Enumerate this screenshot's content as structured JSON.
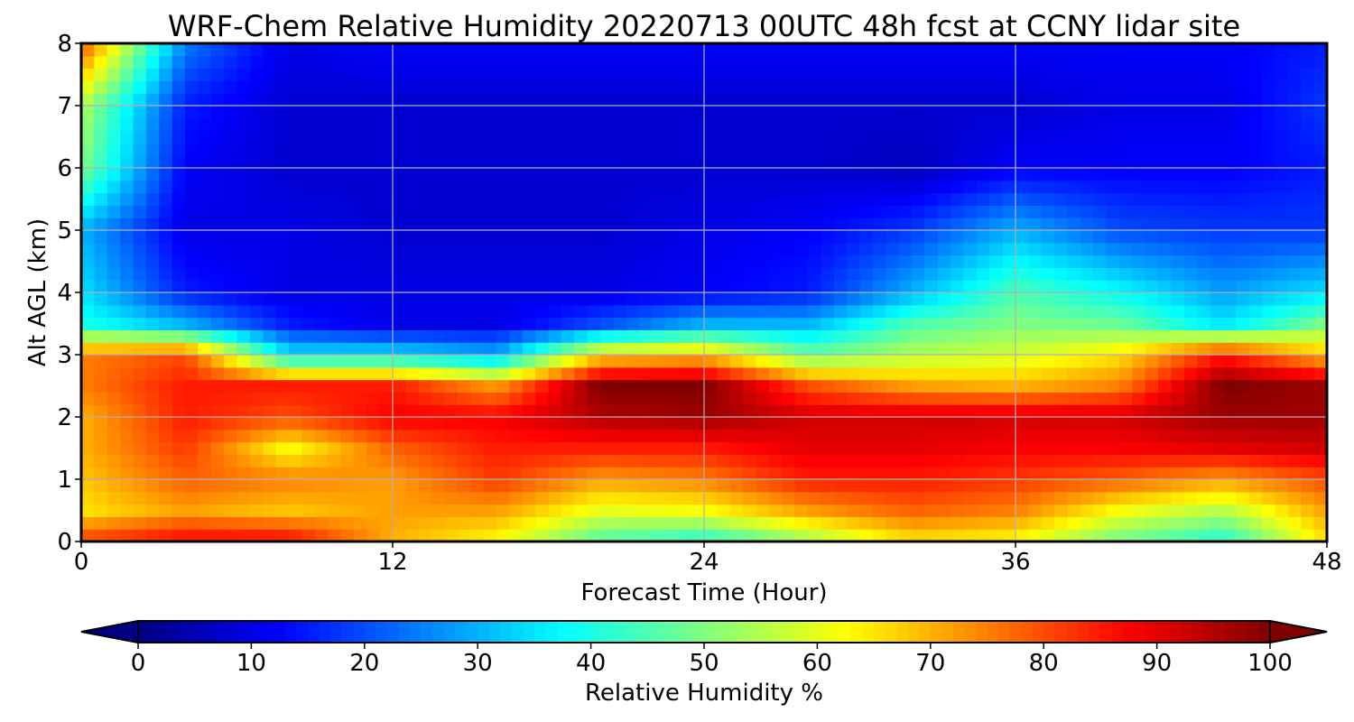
{
  "chart_data": {
    "type": "heatmap",
    "title": "WRF-Chem Relative Humidity 20220713 00UTC 48h fcst at CCNY lidar site",
    "xlabel": "Forecast Time (Hour)",
    "ylabel": "Alt AGL (km)",
    "xlim": [
      0,
      48
    ],
    "ylim": [
      0,
      8
    ],
    "x_ticks": [
      0,
      12,
      24,
      36,
      48
    ],
    "y_ticks": [
      0,
      1,
      2,
      3,
      4,
      5,
      6,
      7,
      8
    ],
    "grid": true,
    "colormap": "jet",
    "colorbar": {
      "label": "Relative Humidity %",
      "min": 0,
      "max": 100,
      "ticks": [
        0,
        10,
        20,
        30,
        40,
        50,
        60,
        70,
        80,
        90,
        100
      ],
      "extend": "both",
      "orientation": "horizontal"
    },
    "x": [
      0,
      4,
      8,
      12,
      16,
      20,
      24,
      28,
      32,
      36,
      40,
      44,
      48
    ],
    "y": [
      0,
      0.5,
      1,
      1.5,
      2,
      2.5,
      3,
      3.5,
      4,
      5,
      6,
      7,
      8
    ],
    "z": [
      [
        82,
        88,
        88,
        70,
        62,
        45,
        40,
        52,
        65,
        62,
        48,
        40,
        65
      ],
      [
        65,
        72,
        68,
        72,
        72,
        60,
        62,
        72,
        78,
        75,
        62,
        55,
        72
      ],
      [
        68,
        78,
        75,
        72,
        82,
        72,
        75,
        85,
        85,
        82,
        78,
        72,
        80
      ],
      [
        70,
        82,
        62,
        78,
        85,
        85,
        85,
        90,
        90,
        88,
        88,
        90,
        92
      ],
      [
        70,
        85,
        80,
        88,
        88,
        95,
        97,
        92,
        92,
        92,
        92,
        97,
        97
      ],
      [
        75,
        85,
        85,
        85,
        72,
        100,
        100,
        80,
        72,
        70,
        75,
        100,
        97
      ],
      [
        75,
        80,
        35,
        35,
        30,
        65,
        68,
        48,
        55,
        58,
        65,
        85,
        68
      ],
      [
        40,
        30,
        15,
        10,
        10,
        20,
        30,
        30,
        45,
        50,
        48,
        35,
        50
      ],
      [
        35,
        15,
        10,
        10,
        10,
        10,
        12,
        15,
        30,
        45,
        38,
        28,
        35
      ],
      [
        30,
        10,
        10,
        8,
        8,
        8,
        10,
        12,
        18,
        30,
        20,
        18,
        18
      ],
      [
        50,
        12,
        8,
        8,
        8,
        8,
        8,
        8,
        6,
        12,
        12,
        12,
        15
      ],
      [
        55,
        15,
        8,
        8,
        8,
        8,
        8,
        8,
        8,
        8,
        10,
        10,
        18
      ],
      [
        80,
        25,
        10,
        12,
        12,
        12,
        12,
        12,
        12,
        12,
        12,
        12,
        15
      ]
    ]
  }
}
